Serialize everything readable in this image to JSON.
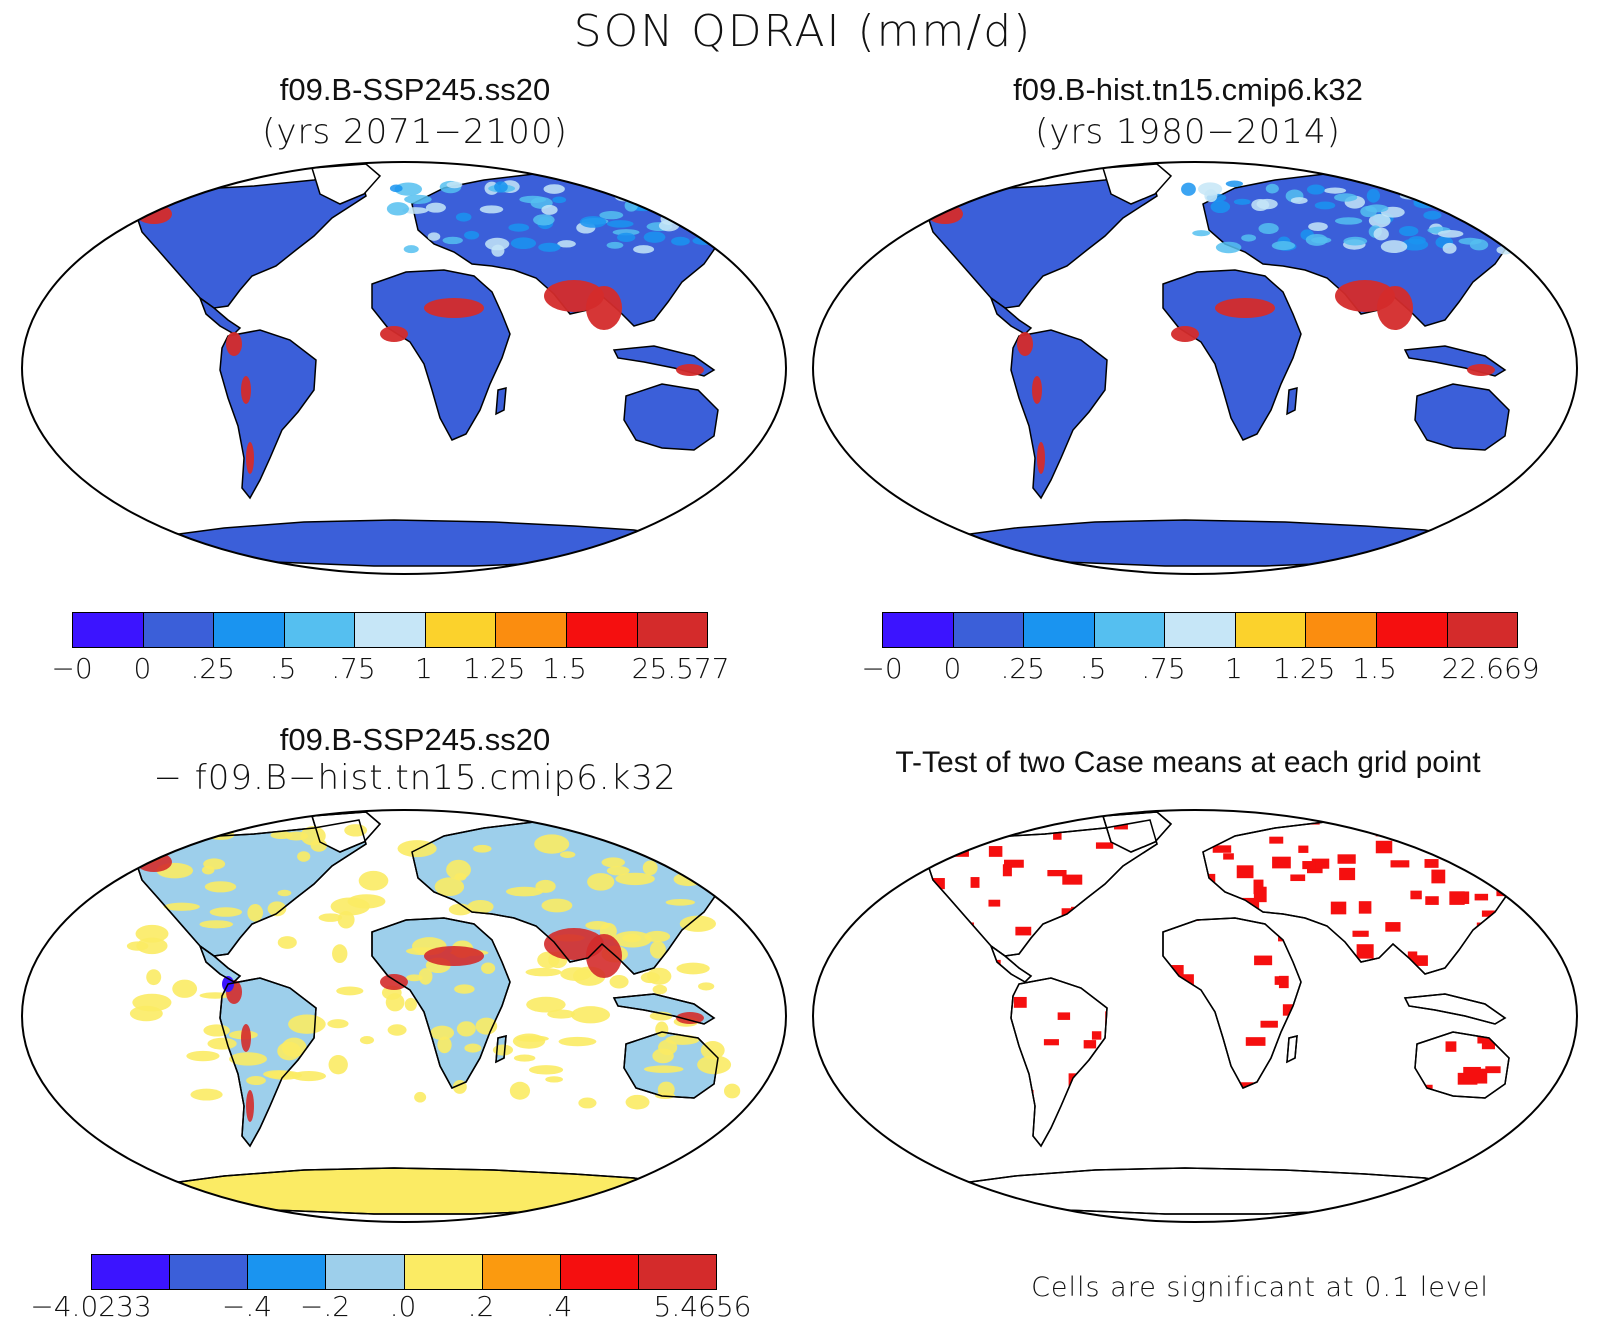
{
  "title": "SON QDRAI (mm/d)",
  "panels": [
    {
      "title": "f09.B-SSP245.ss20",
      "subtitle": "(yrs 2071−2100)"
    },
    {
      "title": "f09.B-hist.tn15.cmip6.k32",
      "subtitle": "(yrs 1980−2014)"
    },
    {
      "title": "f09.B-SSP245.ss20",
      "subtitle": "− f09.B−hist.tn15.cmip6.k32"
    },
    {
      "title": "T-Test of two Case means at each grid point",
      "subtitle": ""
    }
  ],
  "colorbars": {
    "mean_a": {
      "colors": [
        "#3c14ff",
        "#3b5fd9",
        "#1a94f0",
        "#55bff0",
        "#c6e6f7",
        "#fbd22c",
        "#fb8d0f",
        "#f50f0f",
        "#d42b2b"
      ],
      "ticks": [
        "−0",
        "0",
        ".25",
        ".5",
        ".75",
        "1",
        "1.25",
        "1.5",
        "25.577"
      ]
    },
    "mean_b": {
      "colors": [
        "#3c14ff",
        "#3b5fd9",
        "#1a94f0",
        "#55bff0",
        "#c6e6f7",
        "#fbd22c",
        "#fb8d0f",
        "#f50f0f",
        "#d42b2b"
      ],
      "ticks": [
        "−0",
        "0",
        ".25",
        ".5",
        ".75",
        "1",
        "1.25",
        "1.5",
        "22.669"
      ]
    },
    "diff": {
      "colors": [
        "#3c14ff",
        "#3b5fd9",
        "#1a94f0",
        "#9dcfeb",
        "#fbeb64",
        "#fb9a0f",
        "#f50f0f",
        "#d42b2b"
      ],
      "ticks": [
        "−4.0233",
        "−.4",
        "−.2",
        ".0",
        ".2",
        ".4",
        "5.4656"
      ]
    }
  },
  "significance_note": "Cells are significant at 0.1 level",
  "map_fill_colors": {
    "mean_land": "#3b5fd9",
    "mean_hot": "#d42b2b",
    "diff_land_light": "#9dcfeb",
    "diff_land_yellow": "#fbeb64",
    "diff_hot": "#d42b2b",
    "ttest_sig": "#f50f0f"
  }
}
